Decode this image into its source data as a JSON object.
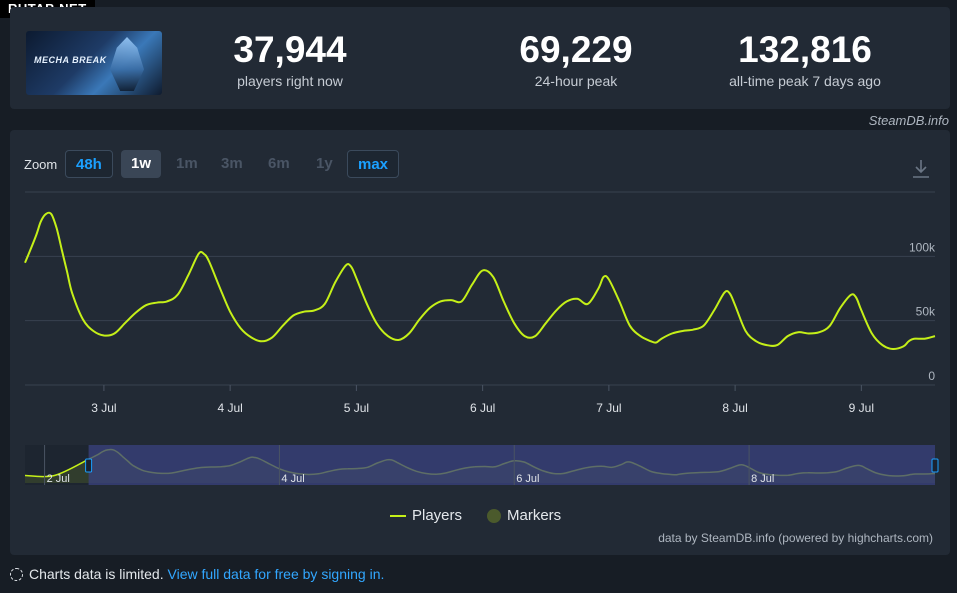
{
  "site_badge": "RUTAB.NET",
  "stats": {
    "game_logo_text": "MECHA BREAK",
    "items": [
      {
        "value": "37,944",
        "label": "players right now"
      },
      {
        "value": "69,229",
        "label": "24-hour peak"
      },
      {
        "value": "132,816",
        "label": "all-time peak 7 days ago"
      }
    ]
  },
  "credit_top": "SteamDB.info",
  "zoom": {
    "label": "Zoom",
    "buttons": [
      {
        "label": "48h",
        "state": "active"
      },
      {
        "label": "1w",
        "state": "selected"
      },
      {
        "label": "1m",
        "state": "disabled"
      },
      {
        "label": "3m",
        "state": "disabled"
      },
      {
        "label": "6m",
        "state": "disabled"
      },
      {
        "label": "1y",
        "state": "disabled"
      },
      {
        "label": "max",
        "state": "active"
      }
    ]
  },
  "legend": {
    "players": "Players",
    "markers": "Markers"
  },
  "credit_bottom": "data by SteamDB.info (powered by highcharts.com)",
  "notice": {
    "text": "Charts data is limited.",
    "link": "View full data for free by signing in."
  },
  "colors": {
    "line": "#c5f018",
    "background": "#222a35",
    "navigator_mask": "#3b4380",
    "accent": "#1ba0ff"
  },
  "chart_data": {
    "type": "line",
    "series": [
      {
        "name": "Players"
      }
    ],
    "x_start": "2 Jul 09:00",
    "x_end": "9 Jul 14:00",
    "xticks": [
      "3 Jul",
      "4 Jul",
      "5 Jul",
      "6 Jul",
      "7 Jul",
      "8 Jul",
      "9 Jul"
    ],
    "yticks": [
      "0",
      "50k",
      "100k"
    ],
    "ylim": [
      0,
      150000
    ],
    "navigator_labels": [
      "2 Jul",
      "4 Jul",
      "6 Jul",
      "8 Jul"
    ],
    "points": [
      [
        "2 Jul 09:00",
        95000
      ],
      [
        "2 Jul 11:00",
        115000
      ],
      [
        "2 Jul 12:00",
        127000
      ],
      [
        "2 Jul 13:00",
        133000
      ],
      [
        "2 Jul 14:00",
        132800
      ],
      [
        "2 Jul 15:00",
        122000
      ],
      [
        "2 Jul 16:00",
        105000
      ],
      [
        "2 Jul 17:00",
        88000
      ],
      [
        "2 Jul 18:00",
        71000
      ],
      [
        "2 Jul 20:00",
        51000
      ],
      [
        "2 Jul 22:00",
        42000
      ],
      [
        "3 Jul 00:00",
        38500
      ],
      [
        "3 Jul 02:00",
        40000
      ],
      [
        "3 Jul 04:00",
        48000
      ],
      [
        "3 Jul 06:00",
        56000
      ],
      [
        "3 Jul 08:00",
        62000
      ],
      [
        "3 Jul 10:00",
        64000
      ],
      [
        "3 Jul 12:00",
        65000
      ],
      [
        "3 Jul 14:00",
        70000
      ],
      [
        "3 Jul 16:00",
        85000
      ],
      [
        "3 Jul 18:00",
        102000
      ],
      [
        "3 Jul 19:00",
        102000
      ],
      [
        "3 Jul 20:00",
        96000
      ],
      [
        "3 Jul 22:00",
        76000
      ],
      [
        "4 Jul 00:00",
        57000
      ],
      [
        "4 Jul 02:00",
        44000
      ],
      [
        "4 Jul 04:00",
        37000
      ],
      [
        "4 Jul 06:00",
        34000
      ],
      [
        "4 Jul 08:00",
        37000
      ],
      [
        "4 Jul 10:00",
        46000
      ],
      [
        "4 Jul 12:00",
        54000
      ],
      [
        "4 Jul 14:00",
        57000
      ],
      [
        "4 Jul 16:00",
        58000
      ],
      [
        "4 Jul 18:00",
        63000
      ],
      [
        "4 Jul 20:00",
        80000
      ],
      [
        "4 Jul 22:00",
        93000
      ],
      [
        "4 Jul 23:00",
        92000
      ],
      [
        "5 Jul 00:00",
        83000
      ],
      [
        "5 Jul 02:00",
        63000
      ],
      [
        "5 Jul 04:00",
        47000
      ],
      [
        "5 Jul 06:00",
        38000
      ],
      [
        "5 Jul 08:00",
        35000
      ],
      [
        "5 Jul 10:00",
        40000
      ],
      [
        "5 Jul 12:00",
        51000
      ],
      [
        "5 Jul 14:00",
        60000
      ],
      [
        "5 Jul 16:00",
        65000
      ],
      [
        "5 Jul 18:00",
        66000
      ],
      [
        "5 Jul 20:00",
        65000
      ],
      [
        "5 Jul 22:00",
        78000
      ],
      [
        "6 Jul 00:00",
        89000
      ],
      [
        "6 Jul 02:00",
        84000
      ],
      [
        "6 Jul 04:00",
        65000
      ],
      [
        "6 Jul 06:00",
        48000
      ],
      [
        "6 Jul 08:00",
        38000
      ],
      [
        "6 Jul 10:00",
        38000
      ],
      [
        "6 Jul 12:00",
        48000
      ],
      [
        "6 Jul 14:00",
        58000
      ],
      [
        "6 Jul 16:00",
        65000
      ],
      [
        "6 Jul 18:00",
        67000
      ],
      [
        "6 Jul 20:00",
        63000
      ],
      [
        "6 Jul 22:00",
        75000
      ],
      [
        "6 Jul 23:00",
        84000
      ],
      [
        "7 Jul 00:00",
        82000
      ],
      [
        "7 Jul 02:00",
        65000
      ],
      [
        "7 Jul 04:00",
        46000
      ],
      [
        "7 Jul 06:00",
        38000
      ],
      [
        "7 Jul 08:00",
        34000
      ],
      [
        "7 Jul 09:00",
        33000
      ],
      [
        "7 Jul 10:00",
        36000
      ],
      [
        "7 Jul 12:00",
        40000
      ],
      [
        "7 Jul 14:00",
        42000
      ],
      [
        "7 Jul 16:00",
        43000
      ],
      [
        "7 Jul 18:00",
        46000
      ],
      [
        "7 Jul 20:00",
        58000
      ],
      [
        "7 Jul 22:00",
        72000
      ],
      [
        "7 Jul 23:00",
        71000
      ],
      [
        "8 Jul 00:00",
        62000
      ],
      [
        "8 Jul 02:00",
        42000
      ],
      [
        "8 Jul 04:00",
        34000
      ],
      [
        "8 Jul 06:00",
        31000
      ],
      [
        "8 Jul 08:00",
        31000
      ],
      [
        "8 Jul 10:00",
        38000
      ],
      [
        "8 Jul 12:00",
        41000
      ],
      [
        "8 Jul 14:00",
        40000
      ],
      [
        "8 Jul 16:00",
        41000
      ],
      [
        "8 Jul 18:00",
        46000
      ],
      [
        "8 Jul 20:00",
        60000
      ],
      [
        "8 Jul 22:00",
        70000
      ],
      [
        "8 Jul 23:00",
        68000
      ],
      [
        "9 Jul 00:00",
        58000
      ],
      [
        "9 Jul 02:00",
        40000
      ],
      [
        "9 Jul 04:00",
        31000
      ],
      [
        "9 Jul 06:00",
        28000
      ],
      [
        "9 Jul 08:00",
        30000
      ],
      [
        "9 Jul 09:00",
        34000
      ],
      [
        "9 Jul 10:00",
        36000
      ],
      [
        "9 Jul 12:00",
        36000
      ],
      [
        "9 Jul 14:00",
        38000
      ]
    ]
  }
}
